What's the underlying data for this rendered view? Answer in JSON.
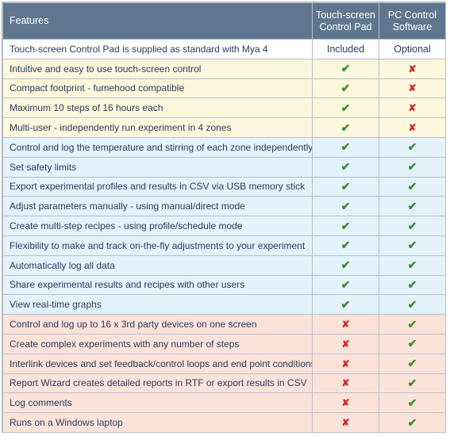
{
  "header": {
    "features": "Features",
    "col1": "Touch-screen Control Pad",
    "col2": "PC Control Software"
  },
  "symbols": {
    "yes": "✔",
    "no": "✘"
  },
  "colors": {
    "header_bg": "#5f7690",
    "white_row": "#ffffff",
    "yellow_row": "#fdf8dd",
    "blue_row": "#e3f2fb",
    "pink_row": "#fbe3da",
    "check": "#3d8a2e",
    "cross": "#cc2a22"
  },
  "rows": [
    {
      "label": "Touch-screen Control Pad is supplied as standard with Mya 4",
      "c1": "Included",
      "c2": "Optional",
      "group": "standard"
    },
    {
      "label": "Intuitive and easy to use touch-screen control",
      "c1": "yes",
      "c2": "no",
      "group": "both-y"
    },
    {
      "label": "Compact footprint - fumehood compatible",
      "c1": "yes",
      "c2": "no",
      "group": "both-y"
    },
    {
      "label": "Maximum 10 steps of 16 hours each",
      "c1": "yes",
      "c2": "no",
      "group": "both-y"
    },
    {
      "label": "Multi-user - independently run experiment in 4 zones",
      "c1": "yes",
      "c2": "no",
      "group": "both-y"
    },
    {
      "label": "Control and log the temperature and stirring of each zone independently",
      "c1": "yes",
      "c2": "yes",
      "group": "both-b"
    },
    {
      "label": "Set safety limits",
      "c1": "yes",
      "c2": "yes",
      "group": "both-b"
    },
    {
      "label": "Export experimental profiles and results in CSV via USB memory stick",
      "c1": "yes",
      "c2": "yes",
      "group": "both-b"
    },
    {
      "label": "Adjust parameters manually - using manual/direct mode",
      "c1": "yes",
      "c2": "yes",
      "group": "both-b"
    },
    {
      "label": "Create multi-step recipes - using profile/schedule mode",
      "c1": "yes",
      "c2": "yes",
      "group": "both-b"
    },
    {
      "label": "Flexibility to make and track on-the-fly adjustments to your experiment",
      "c1": "yes",
      "c2": "yes",
      "group": "both-b"
    },
    {
      "label": "Automatically log all data",
      "c1": "yes",
      "c2": "yes",
      "group": "both-b"
    },
    {
      "label": "Share experimental results and recipes with other users",
      "c1": "yes",
      "c2": "yes",
      "group": "both-b"
    },
    {
      "label": "View real-time graphs",
      "c1": "yes",
      "c2": "yes",
      "group": "both-b"
    },
    {
      "label": "Control and log up to 16 x 3rd party devices on one screen",
      "c1": "no",
      "c2": "yes",
      "group": "pc"
    },
    {
      "label": "Create complex experiments with any number of steps",
      "c1": "no",
      "c2": "yes",
      "group": "pc"
    },
    {
      "label": "Interlink devices and set feedback/control loops and end point conditions",
      "c1": "no",
      "c2": "yes",
      "group": "pc"
    },
    {
      "label": "Report Wizard creates detailed reports in RTF or export results in CSV",
      "c1": "no",
      "c2": "yes",
      "group": "pc"
    },
    {
      "label": "Log comments",
      "c1": "no",
      "c2": "yes",
      "group": "pc"
    },
    {
      "label": "Runs on a Windows laptop",
      "c1": "no",
      "c2": "yes",
      "group": "pc"
    }
  ]
}
